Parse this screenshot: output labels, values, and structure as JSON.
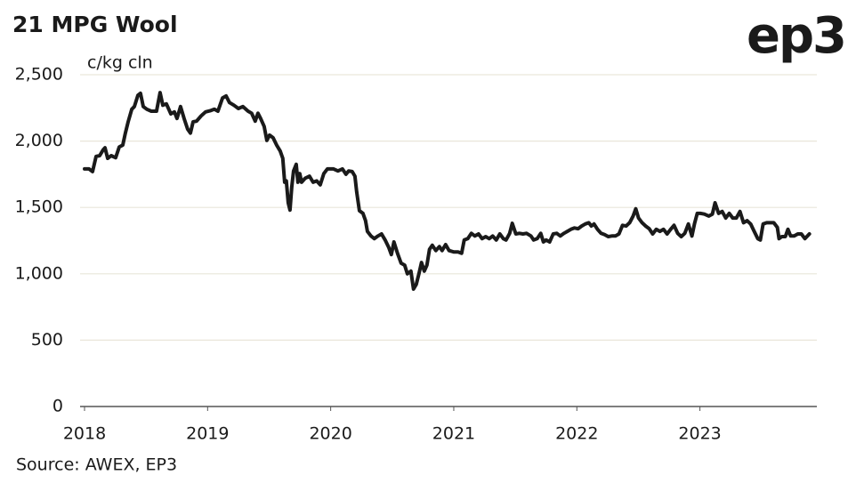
{
  "chart_data": {
    "type": "line",
    "title": "21 MPG Wool",
    "logo": "ep3",
    "y_label": "c/kg cln",
    "source": "Source: AWEX, EP3",
    "xlim": [
      2018,
      2023.95
    ],
    "xticks": [
      2018,
      2019,
      2020,
      2021,
      2022,
      2023
    ],
    "ylim": [
      0,
      2500
    ],
    "yticks": [
      0,
      500,
      {
        "value": 1000,
        "label": "1,000"
      },
      {
        "value": 1500,
        "label": "1,500"
      },
      {
        "value": 2000,
        "label": "2,000"
      },
      {
        "value": 2500,
        "label": "2,500"
      }
    ],
    "grid": true,
    "x": [
      2018.0,
      2018.036,
      2018.065,
      2018.094,
      2018.123,
      2018.152,
      2018.166,
      2018.188,
      2018.217,
      2018.253,
      2018.282,
      2018.311,
      2018.332,
      2018.354,
      2018.384,
      2018.405,
      2018.434,
      2018.455,
      2018.477,
      2018.506,
      2018.542,
      2018.585,
      2018.614,
      2018.636,
      2018.665,
      2018.701,
      2018.73,
      2018.751,
      2018.78,
      2018.809,
      2018.838,
      2018.86,
      2018.882,
      2018.91,
      2018.947,
      2018.983,
      2019.026,
      2019.055,
      2019.084,
      2019.121,
      2019.15,
      2019.178,
      2019.214,
      2019.25,
      2019.286,
      2019.329,
      2019.358,
      2019.387,
      2019.409,
      2019.431,
      2019.46,
      2019.481,
      2019.503,
      2019.532,
      2019.561,
      2019.59,
      2019.611,
      2019.626,
      2019.64,
      2019.655,
      2019.669,
      2019.684,
      2019.698,
      2019.72,
      2019.734,
      2019.749,
      2019.763,
      2019.792,
      2019.828,
      2019.857,
      2019.886,
      2019.915,
      2019.944,
      2019.973,
      2020.023,
      2020.059,
      2020.095,
      2020.124,
      2020.146,
      2020.175,
      2020.197,
      2020.211,
      2020.233,
      2020.262,
      2020.283,
      2020.298,
      2020.327,
      2020.355,
      2020.384,
      2020.413,
      2020.442,
      2020.471,
      2020.493,
      2020.514,
      2020.543,
      2020.572,
      2020.601,
      2020.623,
      2020.652,
      2020.673,
      2020.695,
      2020.717,
      2020.738,
      2020.76,
      2020.782,
      2020.803,
      2020.825,
      2020.854,
      2020.883,
      2020.905,
      2020.934,
      2020.962,
      2020.999,
      2021.035,
      2021.064,
      2021.085,
      2021.114,
      2021.143,
      2021.172,
      2021.201,
      2021.23,
      2021.259,
      2021.288,
      2021.316,
      2021.345,
      2021.374,
      2021.403,
      2021.425,
      2021.454,
      2021.475,
      2021.504,
      2021.533,
      2021.562,
      2021.591,
      2021.627,
      2021.649,
      2021.678,
      2021.707,
      2021.728,
      2021.75,
      2021.779,
      2021.808,
      2021.837,
      2021.866,
      2021.895,
      2021.923,
      2021.952,
      2021.981,
      2022.01,
      2022.039,
      2022.068,
      2022.097,
      2022.118,
      2022.14,
      2022.168,
      2022.197,
      2022.226,
      2022.255,
      2022.284,
      2022.313,
      2022.342,
      2022.371,
      2022.4,
      2022.429,
      2022.457,
      2022.479,
      2022.501,
      2022.53,
      2022.559,
      2022.588,
      2022.616,
      2022.645,
      2022.675,
      2022.704,
      2022.733,
      2022.762,
      2022.79,
      2022.819,
      2022.848,
      2022.877,
      2022.906,
      2022.935,
      2022.957,
      2022.978,
      2023.007,
      2023.036,
      2023.072,
      2023.101,
      2023.123,
      2023.152,
      2023.181,
      2023.21,
      2023.238,
      2023.267,
      2023.296,
      2023.325,
      2023.354,
      2023.383,
      2023.412,
      2023.441,
      2023.47,
      2023.491,
      2023.513,
      2023.542,
      2023.571,
      2023.6,
      2023.629,
      2023.643,
      2023.665,
      2023.694,
      2023.715,
      2023.737,
      2023.766,
      2023.795,
      2023.824,
      2023.853,
      2023.889
    ],
    "series": [
      {
        "color": "#1a1a1a",
        "values": [
          1790,
          1790,
          1770,
          1885,
          1890,
          1935,
          1950,
          1870,
          1890,
          1875,
          1955,
          1970,
          2060,
          2145,
          2240,
          2260,
          2345,
          2360,
          2260,
          2240,
          2225,
          2225,
          2365,
          2270,
          2280,
          2205,
          2220,
          2170,
          2260,
          2170,
          2090,
          2060,
          2145,
          2150,
          2190,
          2220,
          2230,
          2240,
          2225,
          2325,
          2340,
          2290,
          2270,
          2245,
          2260,
          2225,
          2210,
          2150,
          2210,
          2170,
          2110,
          2005,
          2045,
          2025,
          1970,
          1925,
          1870,
          1690,
          1700,
          1535,
          1480,
          1655,
          1775,
          1825,
          1690,
          1755,
          1690,
          1720,
          1735,
          1690,
          1700,
          1670,
          1755,
          1790,
          1790,
          1775,
          1790,
          1750,
          1775,
          1770,
          1735,
          1620,
          1475,
          1455,
          1400,
          1320,
          1285,
          1265,
          1285,
          1300,
          1255,
          1200,
          1145,
          1240,
          1155,
          1080,
          1065,
          1000,
          1020,
          885,
          920,
          1000,
          1085,
          1020,
          1065,
          1185,
          1215,
          1175,
          1205,
          1175,
          1220,
          1175,
          1165,
          1165,
          1155,
          1255,
          1265,
          1305,
          1285,
          1300,
          1265,
          1280,
          1265,
          1285,
          1255,
          1300,
          1265,
          1255,
          1305,
          1380,
          1300,
          1305,
          1300,
          1305,
          1285,
          1255,
          1265,
          1305,
          1240,
          1255,
          1240,
          1300,
          1305,
          1285,
          1305,
          1320,
          1335,
          1345,
          1340,
          1360,
          1375,
          1385,
          1360,
          1375,
          1335,
          1305,
          1295,
          1280,
          1285,
          1285,
          1300,
          1365,
          1360,
          1385,
          1435,
          1490,
          1420,
          1385,
          1360,
          1340,
          1300,
          1335,
          1320,
          1335,
          1300,
          1335,
          1365,
          1305,
          1280,
          1305,
          1375,
          1285,
          1380,
          1455,
          1455,
          1450,
          1435,
          1450,
          1535,
          1455,
          1470,
          1420,
          1455,
          1420,
          1420,
          1470,
          1385,
          1400,
          1375,
          1320,
          1265,
          1255,
          1375,
          1385,
          1385,
          1385,
          1350,
          1265,
          1280,
          1280,
          1335,
          1285,
          1285,
          1300,
          1300,
          1265,
          1300
        ]
      }
    ]
  }
}
